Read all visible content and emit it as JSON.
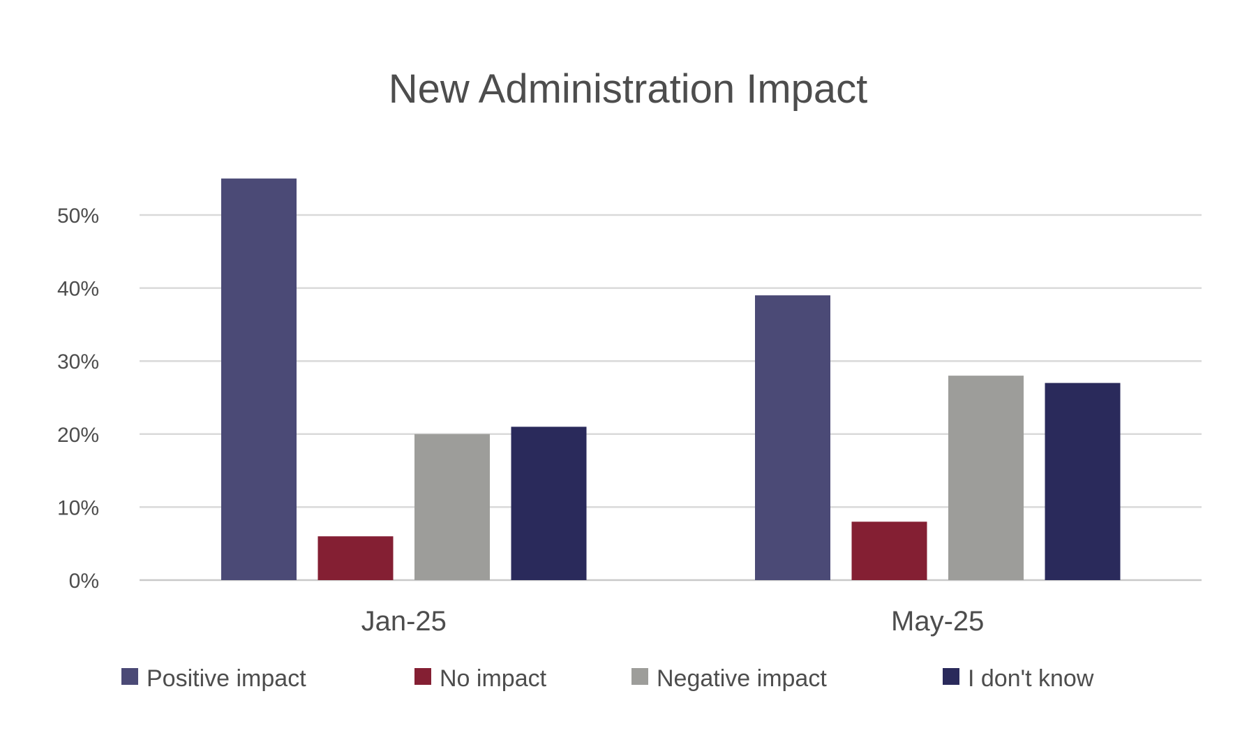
{
  "chart_data": {
    "type": "bar",
    "title": "New Administration Impact",
    "xlabel": "",
    "ylabel": "",
    "categories": [
      "Jan-25",
      "May-25"
    ],
    "y_ticks": [
      "0%",
      "10%",
      "20%",
      "30%",
      "40%",
      "50%"
    ],
    "ylim": [
      0,
      55
    ],
    "grid": true,
    "legend_position": "bottom",
    "series": [
      {
        "name": "Positive impact",
        "color": "#4b4a76",
        "values": [
          55,
          39
        ]
      },
      {
        "name": "No impact",
        "color": "#841f33",
        "values": [
          6,
          8
        ]
      },
      {
        "name": "Negative impact",
        "color": "#9d9d9a",
        "values": [
          20,
          28
        ]
      },
      {
        "name": "I don't know",
        "color": "#2a2a5b",
        "values": [
          21,
          27
        ]
      }
    ]
  }
}
